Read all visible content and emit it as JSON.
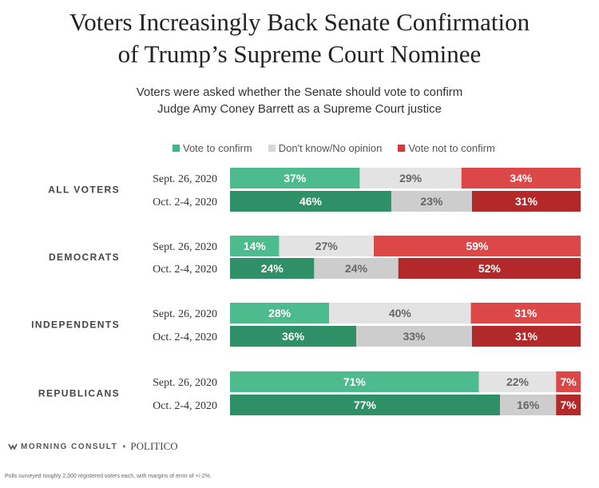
{
  "title_lines": [
    "Voters Increasingly Back Senate Confirmation",
    "of Trump’s Supreme Court Nominee"
  ],
  "subtitle_lines": [
    "Voters were asked whether the Senate should vote to confirm",
    "Judge Amy Coney Barrett as a Supreme Court justice"
  ],
  "legend": [
    {
      "label": "Vote to confirm",
      "color": "#3fb68a"
    },
    {
      "label": "Don't know/No opinion",
      "color": "#d8d8d8"
    },
    {
      "label": "Vote not to confirm",
      "color": "#d63a3a"
    }
  ],
  "footer": {
    "brand_left": "MORNING CONSULT",
    "brand_sep": "•",
    "brand_right": "POLITICO",
    "note": "Polls surveyed roughly 2,000 registered voters each, with margins of error of +/-2%."
  },
  "chart_data": {
    "type": "bar",
    "orientation": "horizontal",
    "stacked": true,
    "percent": true,
    "title": "Voters Increasingly Back Senate Confirmation of Trump’s Supreme Court Nominee",
    "subtitle": "Voters were asked whether the Senate should vote to confirm Judge Amy Coney Barrett as a Supreme Court justice",
    "legend_position": "top",
    "series_names": [
      "Vote to confirm",
      "Don't know/No opinion",
      "Vote not to confirm"
    ],
    "colors": {
      "confirm_light": "#4dbb8e",
      "confirm_dark": "#2f8f67",
      "neutral_light": "#e3e3e3",
      "neutral_dark": "#cdcdcd",
      "oppose_light": "#dc4848",
      "oppose_dark": "#b32828",
      "text_light": "#ffffff",
      "text_neutral": "#666666"
    },
    "groups": [
      {
        "name": "ALL VOTERS",
        "rows": [
          {
            "date": "Sept. 26, 2020",
            "values": [
              37,
              29,
              34
            ]
          },
          {
            "date": "Oct. 2-4, 2020",
            "values": [
              46,
              23,
              31
            ]
          }
        ]
      },
      {
        "name": "DEMOCRATS",
        "rows": [
          {
            "date": "Sept. 26, 2020",
            "values": [
              14,
              27,
              59
            ]
          },
          {
            "date": "Oct. 2-4, 2020",
            "values": [
              24,
              24,
              52
            ]
          }
        ]
      },
      {
        "name": "INDEPENDENTS",
        "rows": [
          {
            "date": "Sept. 26, 2020",
            "values": [
              28,
              40,
              31
            ]
          },
          {
            "date": "Oct. 2-4, 2020",
            "values": [
              36,
              33,
              31
            ]
          }
        ]
      },
      {
        "name": "REPUBLICANS",
        "rows": [
          {
            "date": "Sept. 26, 2020",
            "values": [
              71,
              22,
              7
            ]
          },
          {
            "date": "Oct. 2-4, 2020",
            "values": [
              77,
              16,
              7
            ]
          }
        ]
      }
    ]
  }
}
